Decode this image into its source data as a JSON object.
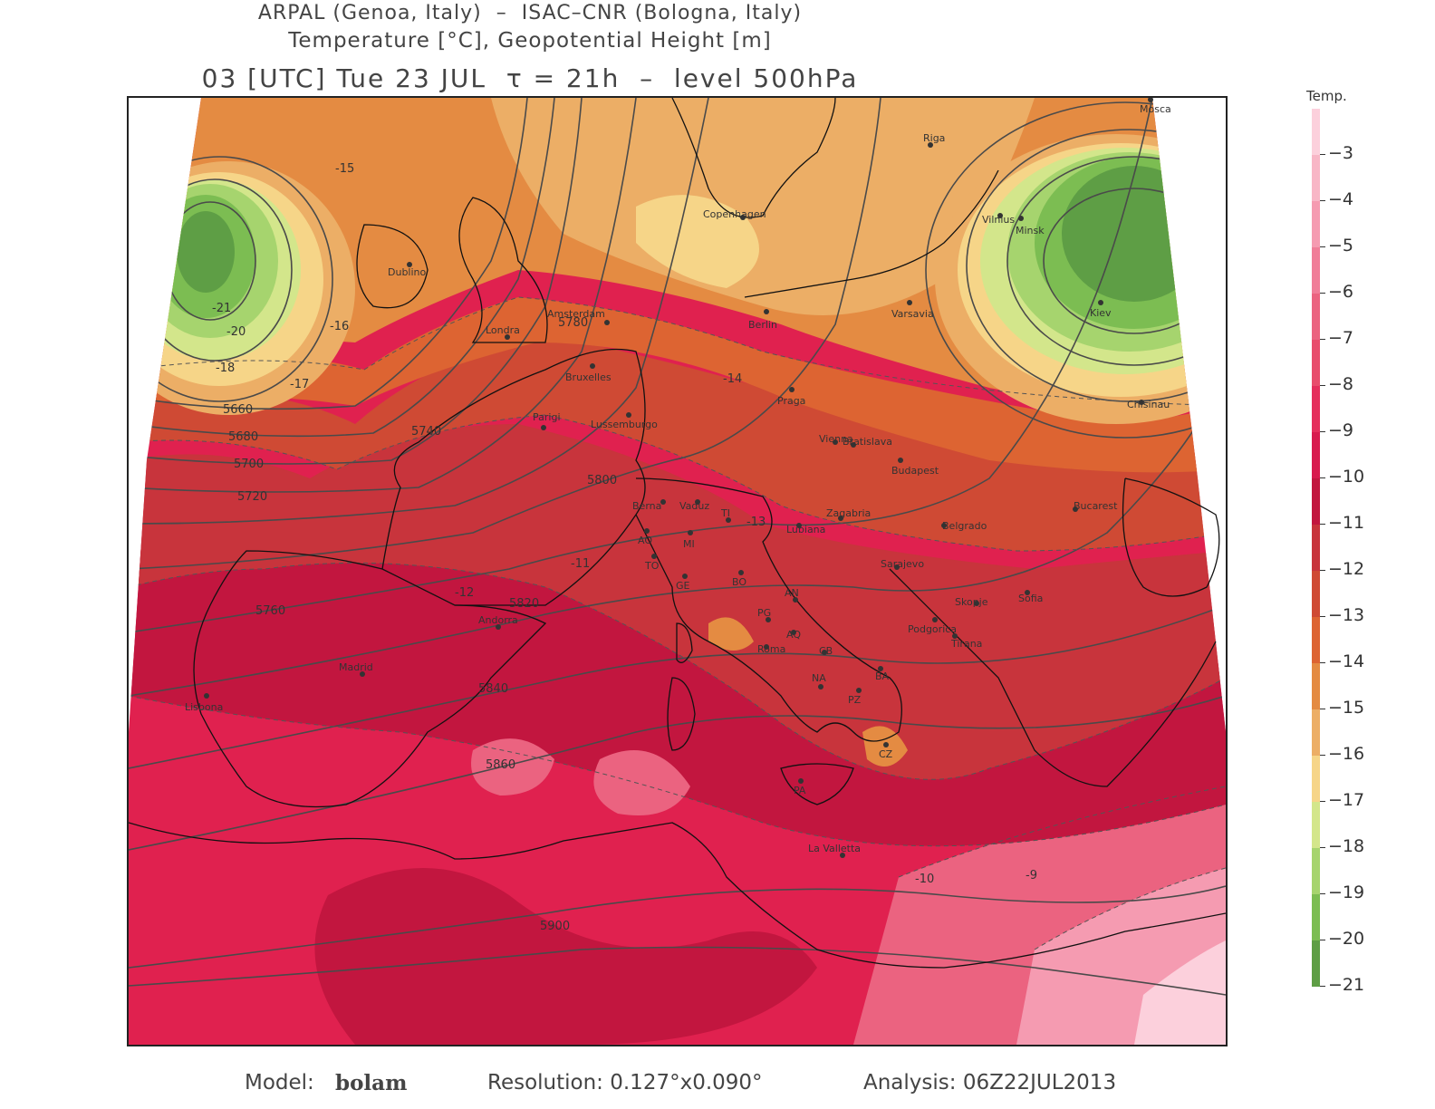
{
  "header": {
    "line1": "ARPAL (Genoa, Italy)  –  ISAC–CNR (Bologna, Italy)",
    "line2": "Temperature [°C], Geopotential Height [m]",
    "line3": "03 [UTC] Tue 23 JUL  τ = 21h  –  level 500hPa"
  },
  "legend": {
    "title": "Temp.",
    "labels": [
      "−3",
      "−4",
      "−5",
      "−6",
      "−7",
      "−8",
      "−9",
      "−10",
      "−11",
      "−12",
      "−13",
      "−14",
      "−15",
      "−16",
      "−17",
      "−18",
      "−19",
      "−20",
      "−21"
    ],
    "colors": [
      "#fcd0dc",
      "#f8b6c6",
      "#f59bb1",
      "#f07d98",
      "#eb6380",
      "#e84c6c",
      "#e52e5c",
      "#d81a4e",
      "#c2163f",
      "#c8343c",
      "#cf4a34",
      "#dd6432",
      "#e48b42",
      "#ecae66",
      "#f6d588",
      "#d3e68b",
      "#a6d46e",
      "#7cbd52",
      "#5e9e45"
    ]
  },
  "footer": {
    "model_label": "Model:",
    "model_value": "bolam",
    "resolution": "Resolution: 0.127°x0.090°",
    "analysis": "Analysis: 06Z22JUL2013"
  },
  "map": {
    "cities": [
      "Mosca",
      "Riga",
      "Vilnius",
      "Minsk",
      "Kiev",
      "Varsavia",
      "Berlin",
      "Copenhagen",
      "Dublino",
      "Londra",
      "Amsterdam",
      "Bruxelles",
      "Parigi",
      "Lussemburgo",
      "Praga",
      "Vienna",
      "Bratislava",
      "Budapest",
      "Chisinau",
      "Bucarest",
      "Belgrado",
      "Sarajevo",
      "Zagabria",
      "Lubiana",
      "Berna",
      "Vaduz",
      "TO",
      "AO",
      "MI",
      "TI",
      "GE",
      "BO",
      "AN",
      "PG",
      "AQ",
      "Roma",
      "CB",
      "NA",
      "BA",
      "PZ",
      "CZ",
      "PA",
      "La Valletta",
      "Sofia",
      "Skopje",
      "Podgorica",
      "Tirana",
      "Madrid",
      "Andorra",
      "Lisbona"
    ],
    "geopotential_labels": [
      "5660",
      "5680",
      "5700",
      "5720",
      "5740",
      "5760",
      "5780",
      "5800",
      "5820",
      "5840",
      "5860",
      "5900"
    ],
    "temperature_labels": [
      "-15",
      "-16",
      "-17",
      "-18",
      "-20",
      "-21",
      "-14",
      "-13",
      "-12",
      "-11",
      "-10",
      "-9"
    ]
  }
}
